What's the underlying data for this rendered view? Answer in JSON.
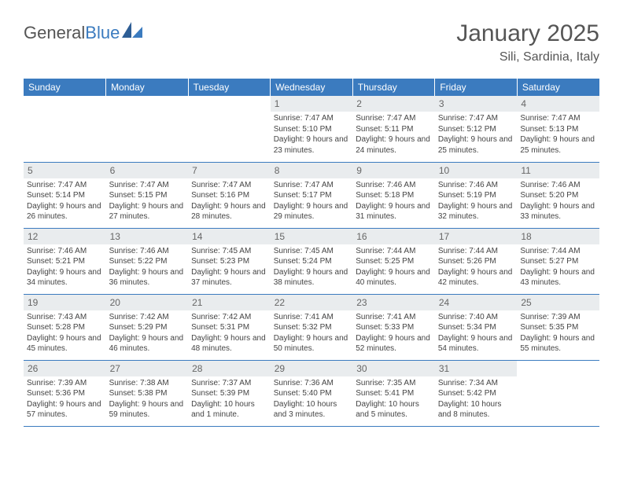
{
  "logo": {
    "text1": "General",
    "text2": "Blue"
  },
  "title": "January 2025",
  "location": "Sili, Sardinia, Italy",
  "colors": {
    "header_bg": "#3b7bbf",
    "header_text": "#ffffff",
    "daynum_bg": "#e9ecee",
    "daynum_text": "#666666",
    "cell_text": "#444444",
    "rule": "#3b7bbf",
    "title_text": "#555555"
  },
  "day_headers": [
    "Sunday",
    "Monday",
    "Tuesday",
    "Wednesday",
    "Thursday",
    "Friday",
    "Saturday"
  ],
  "weeks": [
    [
      {
        "n": "",
        "lines": []
      },
      {
        "n": "",
        "lines": []
      },
      {
        "n": "",
        "lines": []
      },
      {
        "n": "1",
        "lines": [
          "Sunrise: 7:47 AM",
          "Sunset: 5:10 PM",
          "Daylight: 9 hours and 23 minutes."
        ]
      },
      {
        "n": "2",
        "lines": [
          "Sunrise: 7:47 AM",
          "Sunset: 5:11 PM",
          "Daylight: 9 hours and 24 minutes."
        ]
      },
      {
        "n": "3",
        "lines": [
          "Sunrise: 7:47 AM",
          "Sunset: 5:12 PM",
          "Daylight: 9 hours and 25 minutes."
        ]
      },
      {
        "n": "4",
        "lines": [
          "Sunrise: 7:47 AM",
          "Sunset: 5:13 PM",
          "Daylight: 9 hours and 25 minutes."
        ]
      }
    ],
    [
      {
        "n": "5",
        "lines": [
          "Sunrise: 7:47 AM",
          "Sunset: 5:14 PM",
          "Daylight: 9 hours and 26 minutes."
        ]
      },
      {
        "n": "6",
        "lines": [
          "Sunrise: 7:47 AM",
          "Sunset: 5:15 PM",
          "Daylight: 9 hours and 27 minutes."
        ]
      },
      {
        "n": "7",
        "lines": [
          "Sunrise: 7:47 AM",
          "Sunset: 5:16 PM",
          "Daylight: 9 hours and 28 minutes."
        ]
      },
      {
        "n": "8",
        "lines": [
          "Sunrise: 7:47 AM",
          "Sunset: 5:17 PM",
          "Daylight: 9 hours and 29 minutes."
        ]
      },
      {
        "n": "9",
        "lines": [
          "Sunrise: 7:46 AM",
          "Sunset: 5:18 PM",
          "Daylight: 9 hours and 31 minutes."
        ]
      },
      {
        "n": "10",
        "lines": [
          "Sunrise: 7:46 AM",
          "Sunset: 5:19 PM",
          "Daylight: 9 hours and 32 minutes."
        ]
      },
      {
        "n": "11",
        "lines": [
          "Sunrise: 7:46 AM",
          "Sunset: 5:20 PM",
          "Daylight: 9 hours and 33 minutes."
        ]
      }
    ],
    [
      {
        "n": "12",
        "lines": [
          "Sunrise: 7:46 AM",
          "Sunset: 5:21 PM",
          "Daylight: 9 hours and 34 minutes."
        ]
      },
      {
        "n": "13",
        "lines": [
          "Sunrise: 7:46 AM",
          "Sunset: 5:22 PM",
          "Daylight: 9 hours and 36 minutes."
        ]
      },
      {
        "n": "14",
        "lines": [
          "Sunrise: 7:45 AM",
          "Sunset: 5:23 PM",
          "Daylight: 9 hours and 37 minutes."
        ]
      },
      {
        "n": "15",
        "lines": [
          "Sunrise: 7:45 AM",
          "Sunset: 5:24 PM",
          "Daylight: 9 hours and 38 minutes."
        ]
      },
      {
        "n": "16",
        "lines": [
          "Sunrise: 7:44 AM",
          "Sunset: 5:25 PM",
          "Daylight: 9 hours and 40 minutes."
        ]
      },
      {
        "n": "17",
        "lines": [
          "Sunrise: 7:44 AM",
          "Sunset: 5:26 PM",
          "Daylight: 9 hours and 42 minutes."
        ]
      },
      {
        "n": "18",
        "lines": [
          "Sunrise: 7:44 AM",
          "Sunset: 5:27 PM",
          "Daylight: 9 hours and 43 minutes."
        ]
      }
    ],
    [
      {
        "n": "19",
        "lines": [
          "Sunrise: 7:43 AM",
          "Sunset: 5:28 PM",
          "Daylight: 9 hours and 45 minutes."
        ]
      },
      {
        "n": "20",
        "lines": [
          "Sunrise: 7:42 AM",
          "Sunset: 5:29 PM",
          "Daylight: 9 hours and 46 minutes."
        ]
      },
      {
        "n": "21",
        "lines": [
          "Sunrise: 7:42 AM",
          "Sunset: 5:31 PM",
          "Daylight: 9 hours and 48 minutes."
        ]
      },
      {
        "n": "22",
        "lines": [
          "Sunrise: 7:41 AM",
          "Sunset: 5:32 PM",
          "Daylight: 9 hours and 50 minutes."
        ]
      },
      {
        "n": "23",
        "lines": [
          "Sunrise: 7:41 AM",
          "Sunset: 5:33 PM",
          "Daylight: 9 hours and 52 minutes."
        ]
      },
      {
        "n": "24",
        "lines": [
          "Sunrise: 7:40 AM",
          "Sunset: 5:34 PM",
          "Daylight: 9 hours and 54 minutes."
        ]
      },
      {
        "n": "25",
        "lines": [
          "Sunrise: 7:39 AM",
          "Sunset: 5:35 PM",
          "Daylight: 9 hours and 55 minutes."
        ]
      }
    ],
    [
      {
        "n": "26",
        "lines": [
          "Sunrise: 7:39 AM",
          "Sunset: 5:36 PM",
          "Daylight: 9 hours and 57 minutes."
        ]
      },
      {
        "n": "27",
        "lines": [
          "Sunrise: 7:38 AM",
          "Sunset: 5:38 PM",
          "Daylight: 9 hours and 59 minutes."
        ]
      },
      {
        "n": "28",
        "lines": [
          "Sunrise: 7:37 AM",
          "Sunset: 5:39 PM",
          "Daylight: 10 hours and 1 minute."
        ]
      },
      {
        "n": "29",
        "lines": [
          "Sunrise: 7:36 AM",
          "Sunset: 5:40 PM",
          "Daylight: 10 hours and 3 minutes."
        ]
      },
      {
        "n": "30",
        "lines": [
          "Sunrise: 7:35 AM",
          "Sunset: 5:41 PM",
          "Daylight: 10 hours and 5 minutes."
        ]
      },
      {
        "n": "31",
        "lines": [
          "Sunrise: 7:34 AM",
          "Sunset: 5:42 PM",
          "Daylight: 10 hours and 8 minutes."
        ]
      },
      {
        "n": "",
        "lines": []
      }
    ]
  ]
}
